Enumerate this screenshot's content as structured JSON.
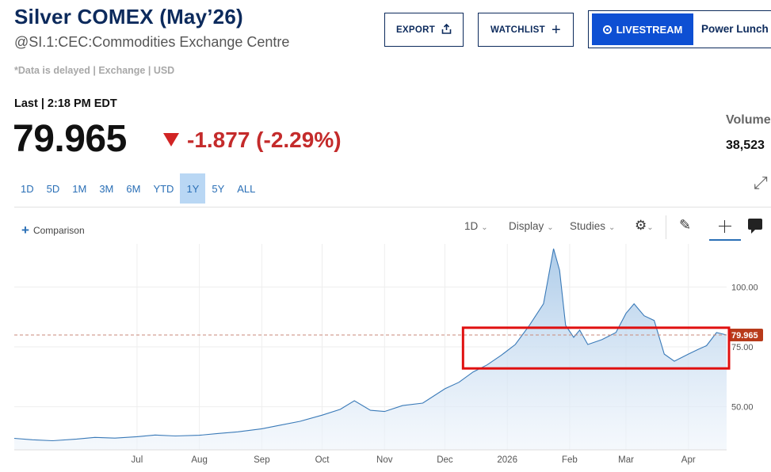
{
  "header": {
    "title": "Silver COMEX (May’26)",
    "subtitle": "@SI.1:CEC:Commodities Exchange Centre",
    "delay_note": "*Data is delayed | Exchange | USD"
  },
  "actions": {
    "export_label": "EXPORT",
    "export_icon": "share-icon",
    "watchlist_label": "WATCHLIST",
    "watchlist_icon": "plus-icon",
    "livestream_label": "LIVESTREAM",
    "livestream_show": "Power Lunch"
  },
  "quote": {
    "last_label": "Last | 2:18 PM EDT",
    "price": "79.965",
    "change": "-1.877 (-2.29%)",
    "change_color": "#c42b2b",
    "volume_label": "Volume",
    "volume_value": "38,523"
  },
  "ranges": [
    {
      "label": "1D",
      "active": false
    },
    {
      "label": "5D",
      "active": false
    },
    {
      "label": "1M",
      "active": false
    },
    {
      "label": "3M",
      "active": false
    },
    {
      "label": "6M",
      "active": false
    },
    {
      "label": "YTD",
      "active": false
    },
    {
      "label": "1Y",
      "active": true
    },
    {
      "label": "5Y",
      "active": false
    },
    {
      "label": "ALL",
      "active": false
    }
  ],
  "toolbar": {
    "comparison_label": "Comparison",
    "interval_label": "1D",
    "display_label": "Display",
    "studies_label": "Studies",
    "icons": [
      "gear-icon",
      "pencil-icon",
      "crosshair-icon",
      "comment-icon"
    ]
  },
  "chart_data": {
    "type": "area",
    "x_ticks": [
      "Jul",
      "Aug",
      "Sep",
      "Oct",
      "Nov",
      "Dec",
      "2026",
      "Feb",
      "Mar",
      "Apr"
    ],
    "y_ticks": [
      50,
      75,
      100
    ],
    "y_tick_labels": [
      "50.00",
      "75.00",
      "100.00"
    ],
    "ylim": [
      32,
      118
    ],
    "last_price": 79.965,
    "last_price_label": "79.965",
    "series": [
      {
        "color": "#3a7ab8",
        "fill": "#c8ddf0",
        "x": [
          "2025-05-01",
          "2025-05-10",
          "2025-05-20",
          "2025-06-01",
          "2025-06-10",
          "2025-06-20",
          "2025-07-01",
          "2025-07-10",
          "2025-07-20",
          "2025-08-01",
          "2025-08-10",
          "2025-08-20",
          "2025-09-01",
          "2025-09-10",
          "2025-09-20",
          "2025-10-01",
          "2025-10-10",
          "2025-10-17",
          "2025-10-25",
          "2025-11-01",
          "2025-11-10",
          "2025-11-20",
          "2025-12-01",
          "2025-12-08",
          "2025-12-15",
          "2025-12-22",
          "2025-12-29",
          "2026-01-05",
          "2026-01-12",
          "2026-01-19",
          "2026-01-24",
          "2026-01-27",
          "2026-01-30",
          "2026-02-03",
          "2026-02-06",
          "2026-02-10",
          "2026-02-17",
          "2026-02-24",
          "2026-03-01",
          "2026-03-05",
          "2026-03-10",
          "2026-03-15",
          "2026-03-20",
          "2026-03-25",
          "2026-04-01",
          "2026-04-06",
          "2026-04-10",
          "2026-04-15",
          "2026-04-20"
        ],
        "y": [
          36.8,
          36.2,
          35.8,
          36.5,
          37.2,
          36.9,
          37.5,
          38.2,
          37.8,
          38.1,
          38.8,
          39.5,
          40.8,
          42.3,
          43.9,
          46.5,
          48.9,
          52.5,
          48.5,
          48.0,
          50.5,
          51.5,
          57.5,
          60.2,
          64.5,
          67.5,
          71.5,
          76.0,
          84.0,
          93.0,
          116.0,
          107.0,
          84.0,
          79.0,
          82.0,
          76.0,
          78.0,
          81.0,
          89.0,
          93.0,
          88.0,
          86.0,
          72.0,
          69.0,
          72.0,
          74.0,
          75.5,
          81.0,
          79.965
        ]
      }
    ],
    "x_start": "2025-05-01",
    "x_end": "2026-04-20",
    "highlight_box": {
      "from": "2025-12-10",
      "to": "2026-04-20",
      "y_low": 66,
      "y_high": 83,
      "color": "#e01010"
    }
  }
}
